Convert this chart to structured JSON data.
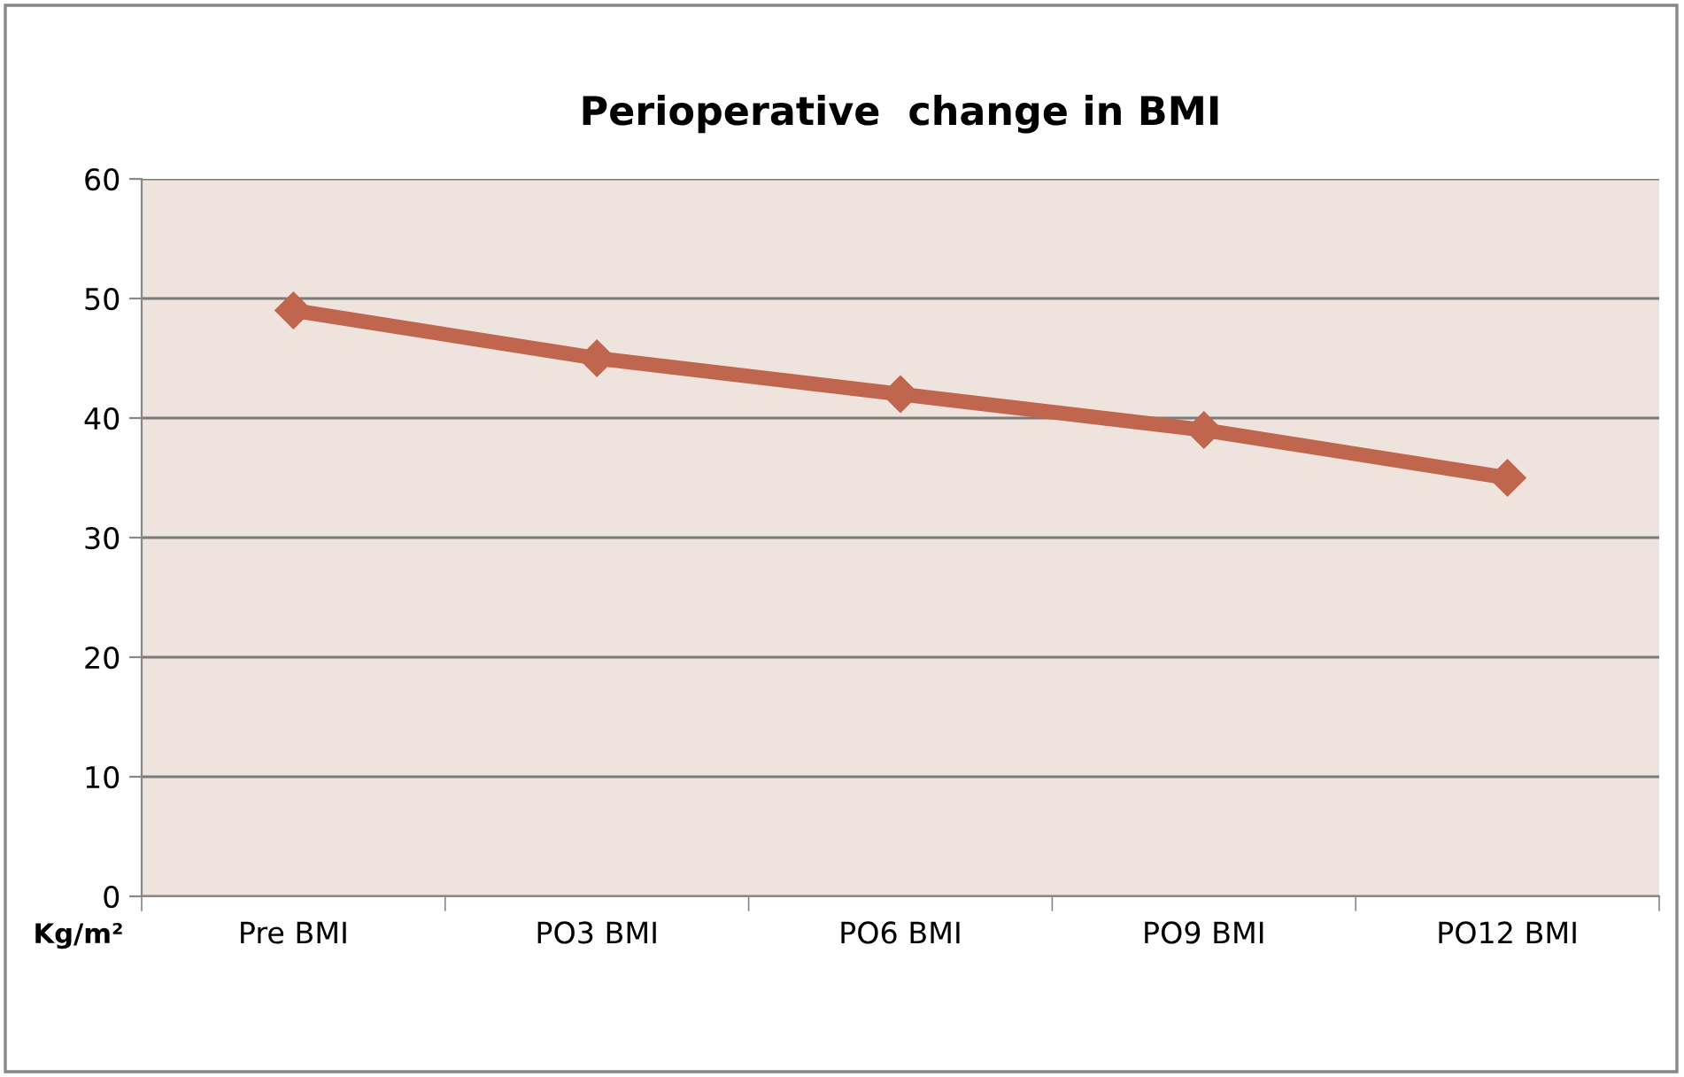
{
  "chart_data": {
    "type": "line",
    "title": "Perioperative  change in BMI",
    "ylabel": "Kg/m²",
    "categories": [
      "Pre BMI",
      "PO3 BMI",
      "PO6 BMI",
      "PO9 BMI",
      "PO12 BMI"
    ],
    "series": [
      {
        "color": "#c0654e",
        "values": [
          49,
          45,
          42,
          39,
          35
        ]
      }
    ],
    "ylim": [
      0,
      60
    ],
    "yticks": [
      0,
      10,
      20,
      30,
      40,
      50,
      60
    ],
    "grid": "y",
    "marker": "diamond",
    "line_style": "solid"
  }
}
